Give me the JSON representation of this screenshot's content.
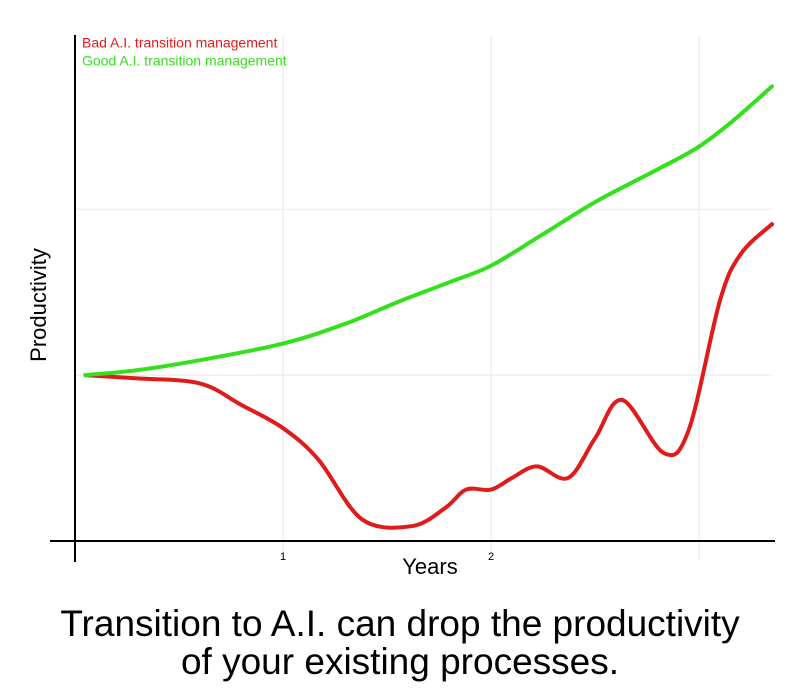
{
  "chart_data": {
    "type": "line",
    "caption": [
      "Transition to A.I. can drop the productivity",
      "of your existing processes."
    ],
    "x_label": "Years",
    "y_label": "Productivity",
    "xlim": [
      0,
      3.35
    ],
    "ylim": [
      0,
      3.05
    ],
    "xticks": [
      1,
      2
    ],
    "x_gridlines": [
      1,
      2,
      3
    ],
    "y_gridlines": [
      1,
      2
    ],
    "series": [
      {
        "name": "Bad A.I. transition management",
        "color": "#e01b1b",
        "x": [
          0.05,
          0.3,
          0.6,
          0.8,
          1.0,
          1.17,
          1.38,
          1.62,
          1.78,
          1.88,
          2.0,
          2.1,
          2.22,
          2.37,
          2.5,
          2.63,
          2.83,
          2.95,
          3.1,
          3.2,
          3.35
        ],
        "values": [
          1.0,
          0.98,
          0.95,
          0.82,
          0.68,
          0.49,
          0.13,
          0.09,
          0.2,
          0.31,
          0.31,
          0.38,
          0.45,
          0.38,
          0.62,
          0.85,
          0.53,
          0.67,
          1.45,
          1.73,
          1.91
        ]
      },
      {
        "name": "Good A.I. transition management",
        "color": "#33e01b",
        "x": [
          0.05,
          0.3,
          0.6,
          1.0,
          1.3,
          1.55,
          1.8,
          2.0,
          2.25,
          2.51,
          2.8,
          2.99,
          3.15,
          3.35
        ],
        "values": [
          1.0,
          1.03,
          1.09,
          1.19,
          1.31,
          1.44,
          1.56,
          1.66,
          1.85,
          2.05,
          2.24,
          2.37,
          2.52,
          2.74
        ]
      }
    ]
  }
}
